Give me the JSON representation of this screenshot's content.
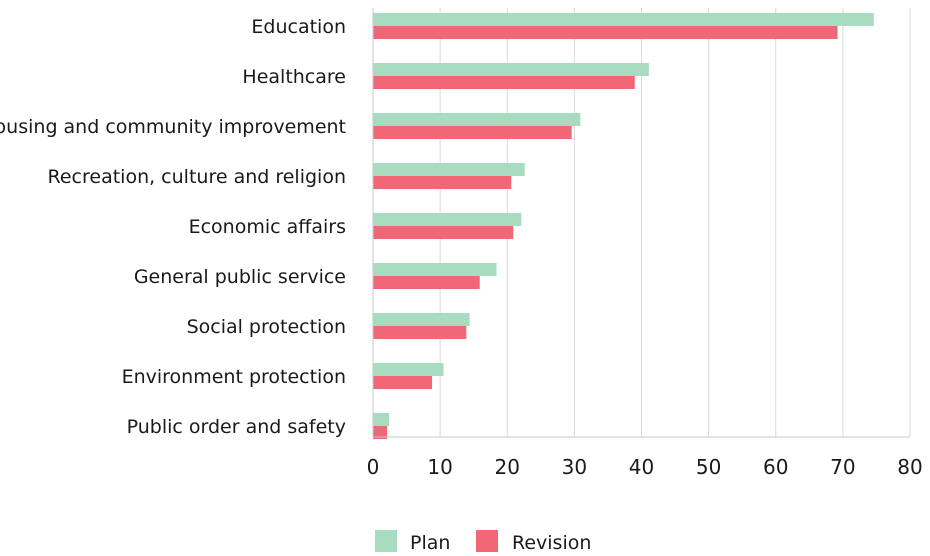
{
  "chart_data": {
    "type": "bar",
    "orientation": "horizontal",
    "categories": [
      "Education",
      "Healthcare",
      "Housing and community improvement",
      "Recreation, culture and religion",
      "Economic affairs",
      "General public service",
      "Social protection",
      "Environment protection",
      "Public order and safety"
    ],
    "series": [
      {
        "name": "Plan",
        "color": "#a8dcc0",
        "values": [
          74.6,
          41.1,
          30.9,
          22.6,
          22.1,
          18.4,
          14.4,
          10.5,
          2.4
        ]
      },
      {
        "name": "Revision",
        "color": "#f06878",
        "values": [
          69.2,
          39.0,
          29.6,
          20.6,
          20.9,
          15.9,
          13.9,
          8.8,
          2.1
        ]
      }
    ],
    "xlim": [
      0,
      80
    ],
    "xticks": [
      "0",
      "10",
      "20",
      "30",
      "40",
      "50",
      "60",
      "70",
      "80"
    ],
    "grid": true,
    "legend": "bottom"
  }
}
